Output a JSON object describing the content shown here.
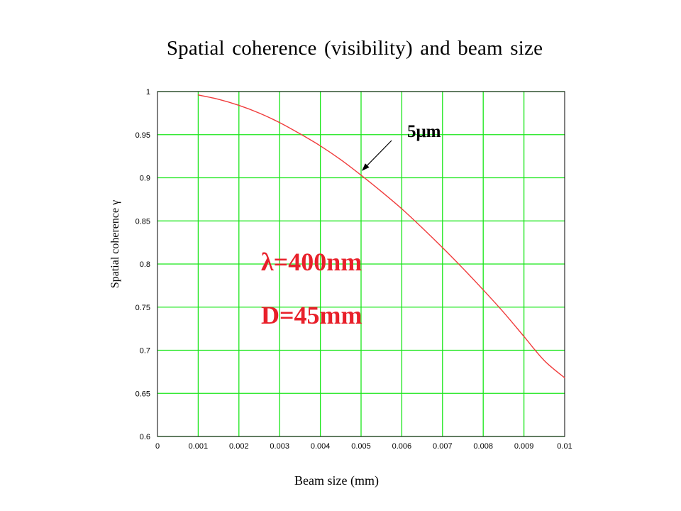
{
  "title": "Spatial coherence (visibility) and beam size",
  "annotations": {
    "lambda": "λ=400nm",
    "diameter": "D=45mm",
    "marker": "5μm"
  },
  "colors": {
    "grid": "#19e619",
    "curve": "#f03c3c",
    "axis": "#000000"
  },
  "chart_data": {
    "type": "line",
    "xlabel": "Beam size (mm)",
    "ylabel": "Spatial coherence γ",
    "xlim": [
      0,
      0.01
    ],
    "ylim": [
      0.6,
      1
    ],
    "x_ticks": [
      "0",
      "0.001",
      "0.002",
      "0.003",
      "0.004",
      "0.005",
      "0.006",
      "0.007",
      "0.008",
      "0.009",
      "0.01"
    ],
    "y_ticks": [
      "1",
      "0.95",
      "0.9",
      "0.85",
      "0.8",
      "0.75",
      "0.7",
      "0.65",
      "0.6"
    ],
    "grid": true,
    "series": [
      {
        "x": [
          0.001,
          0.0015,
          0.002,
          0.0025,
          0.003,
          0.0035,
          0.004,
          0.0045,
          0.005,
          0.0055,
          0.006,
          0.0065,
          0.007,
          0.0075,
          0.008,
          0.0085,
          0.009,
          0.0095,
          0.01
        ],
        "values": [
          0.996,
          0.991,
          0.984,
          0.975,
          0.964,
          0.951,
          0.937,
          0.921,
          0.903,
          0.884,
          0.864,
          0.842,
          0.819,
          0.795,
          0.77,
          0.744,
          0.716,
          0.688,
          0.668
        ]
      }
    ],
    "arrow_annotation": {
      "text_ref": "annotations.marker",
      "points_to_x": 0.005,
      "points_to_y": 0.903
    }
  }
}
